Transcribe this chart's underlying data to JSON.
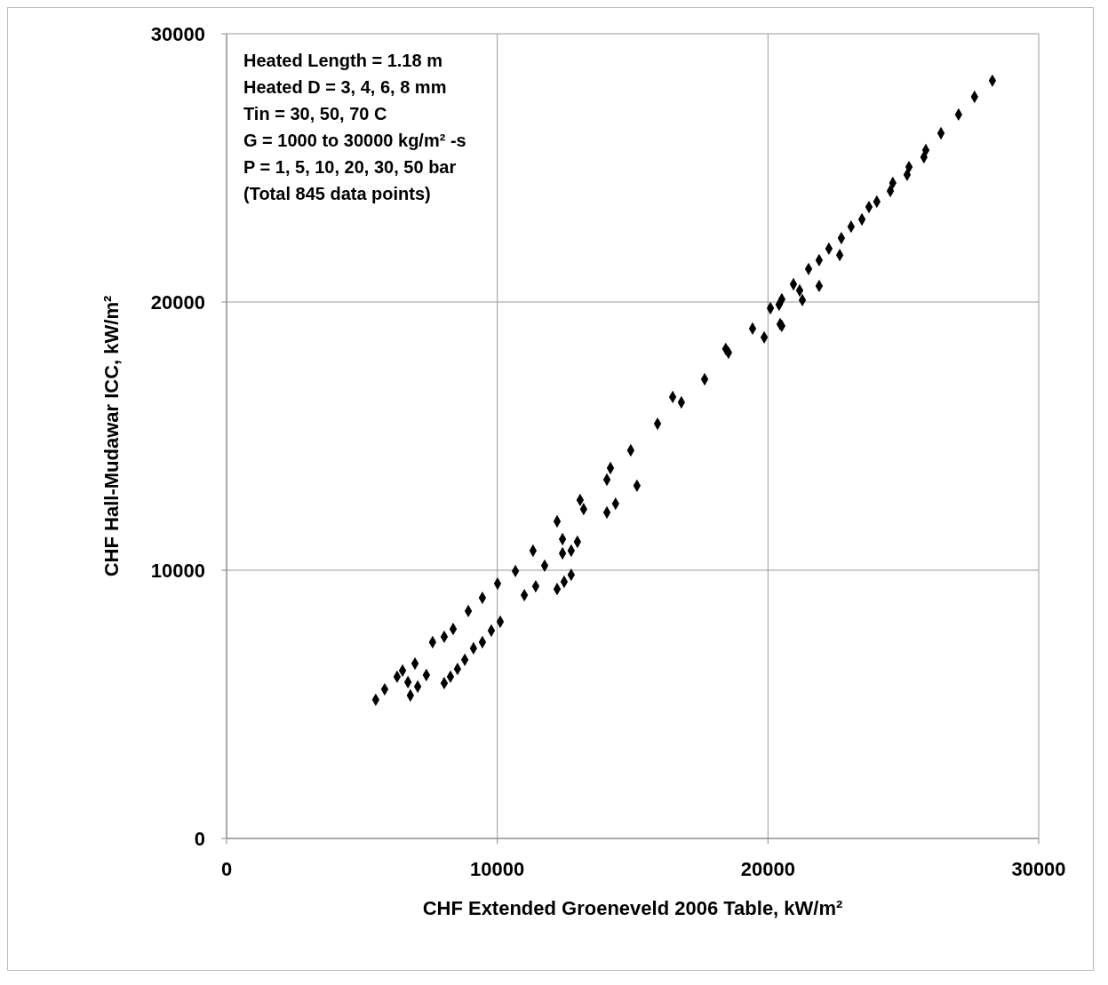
{
  "chart_data": {
    "type": "scatter",
    "xlabel": "CHF Extended Groeneveld 2006 Table, kW/m²",
    "ylabel": "CHF Hall-Mudawar ICC, kW/m²",
    "annotations": [
      "Heated Length = 1.18 m",
      "Heated D = 3, 4, 6, 8 mm",
      "Tin = 30, 50, 70 C",
      "G = 1000 to 30000 kg/m² -s",
      "P = 1, 5, 10, 20, 30, 50 bar",
      "(Total 845 data points)"
    ],
    "xlim": [
      0,
      30000
    ],
    "ylim": [
      0,
      30000
    ],
    "xticks": [
      0,
      10000,
      20000,
      30000
    ],
    "yticks": [
      0,
      10000,
      20000,
      30000
    ],
    "grid": true,
    "marker": "diamond",
    "series": [
      {
        "color": "#000000",
        "x": [
          5510,
          5840,
          6300,
          6500,
          6790,
          6700,
          7060,
          6960,
          7380,
          7610,
          8040,
          8270,
          8530,
          8800,
          9120,
          9450,
          9780,
          10110,
          8370,
          8040,
          8930,
          9450,
          10010,
          10670,
          11320,
          12210,
          13060,
          11000,
          11420,
          12210,
          12470,
          12730,
          12410,
          12960,
          14050,
          14370,
          11750,
          12410,
          13190,
          14050,
          14930,
          15920,
          16800,
          17660,
          18540,
          19430,
          20410,
          21170,
          15160,
          12730,
          19860,
          20510,
          14180,
          16480,
          18440,
          28290,
          27630,
          27040,
          26390,
          25830,
          25760,
          25210,
          25140,
          24610,
          24520,
          24020,
          23730,
          23470,
          23070,
          22710,
          22250,
          22650,
          21890,
          21500,
          21890,
          20940,
          21270,
          20510,
          20090,
          20450
        ],
        "values": [
          5170,
          5560,
          6030,
          6260,
          5330,
          5830,
          5660,
          6520,
          6090,
          7320,
          5790,
          6030,
          6320,
          6660,
          7090,
          7320,
          7750,
          8080,
          7810,
          7520,
          8480,
          8970,
          9500,
          9970,
          10730,
          11820,
          12620,
          9070,
          9400,
          9300,
          9570,
          9830,
          10630,
          11060,
          12150,
          12480,
          10170,
          11160,
          12280,
          13380,
          14470,
          15460,
          16260,
          17120,
          18110,
          19010,
          19900,
          20430,
          13150,
          10730,
          18680,
          19110,
          13810,
          16460,
          18250,
          28250,
          27650,
          26990,
          26290,
          25660,
          25400,
          25030,
          24740,
          24440,
          24140,
          23740,
          23540,
          23080,
          22810,
          22380,
          21990,
          21750,
          21560,
          21230,
          20600,
          20660,
          20070,
          20100,
          19770,
          19170
        ]
      }
    ]
  }
}
